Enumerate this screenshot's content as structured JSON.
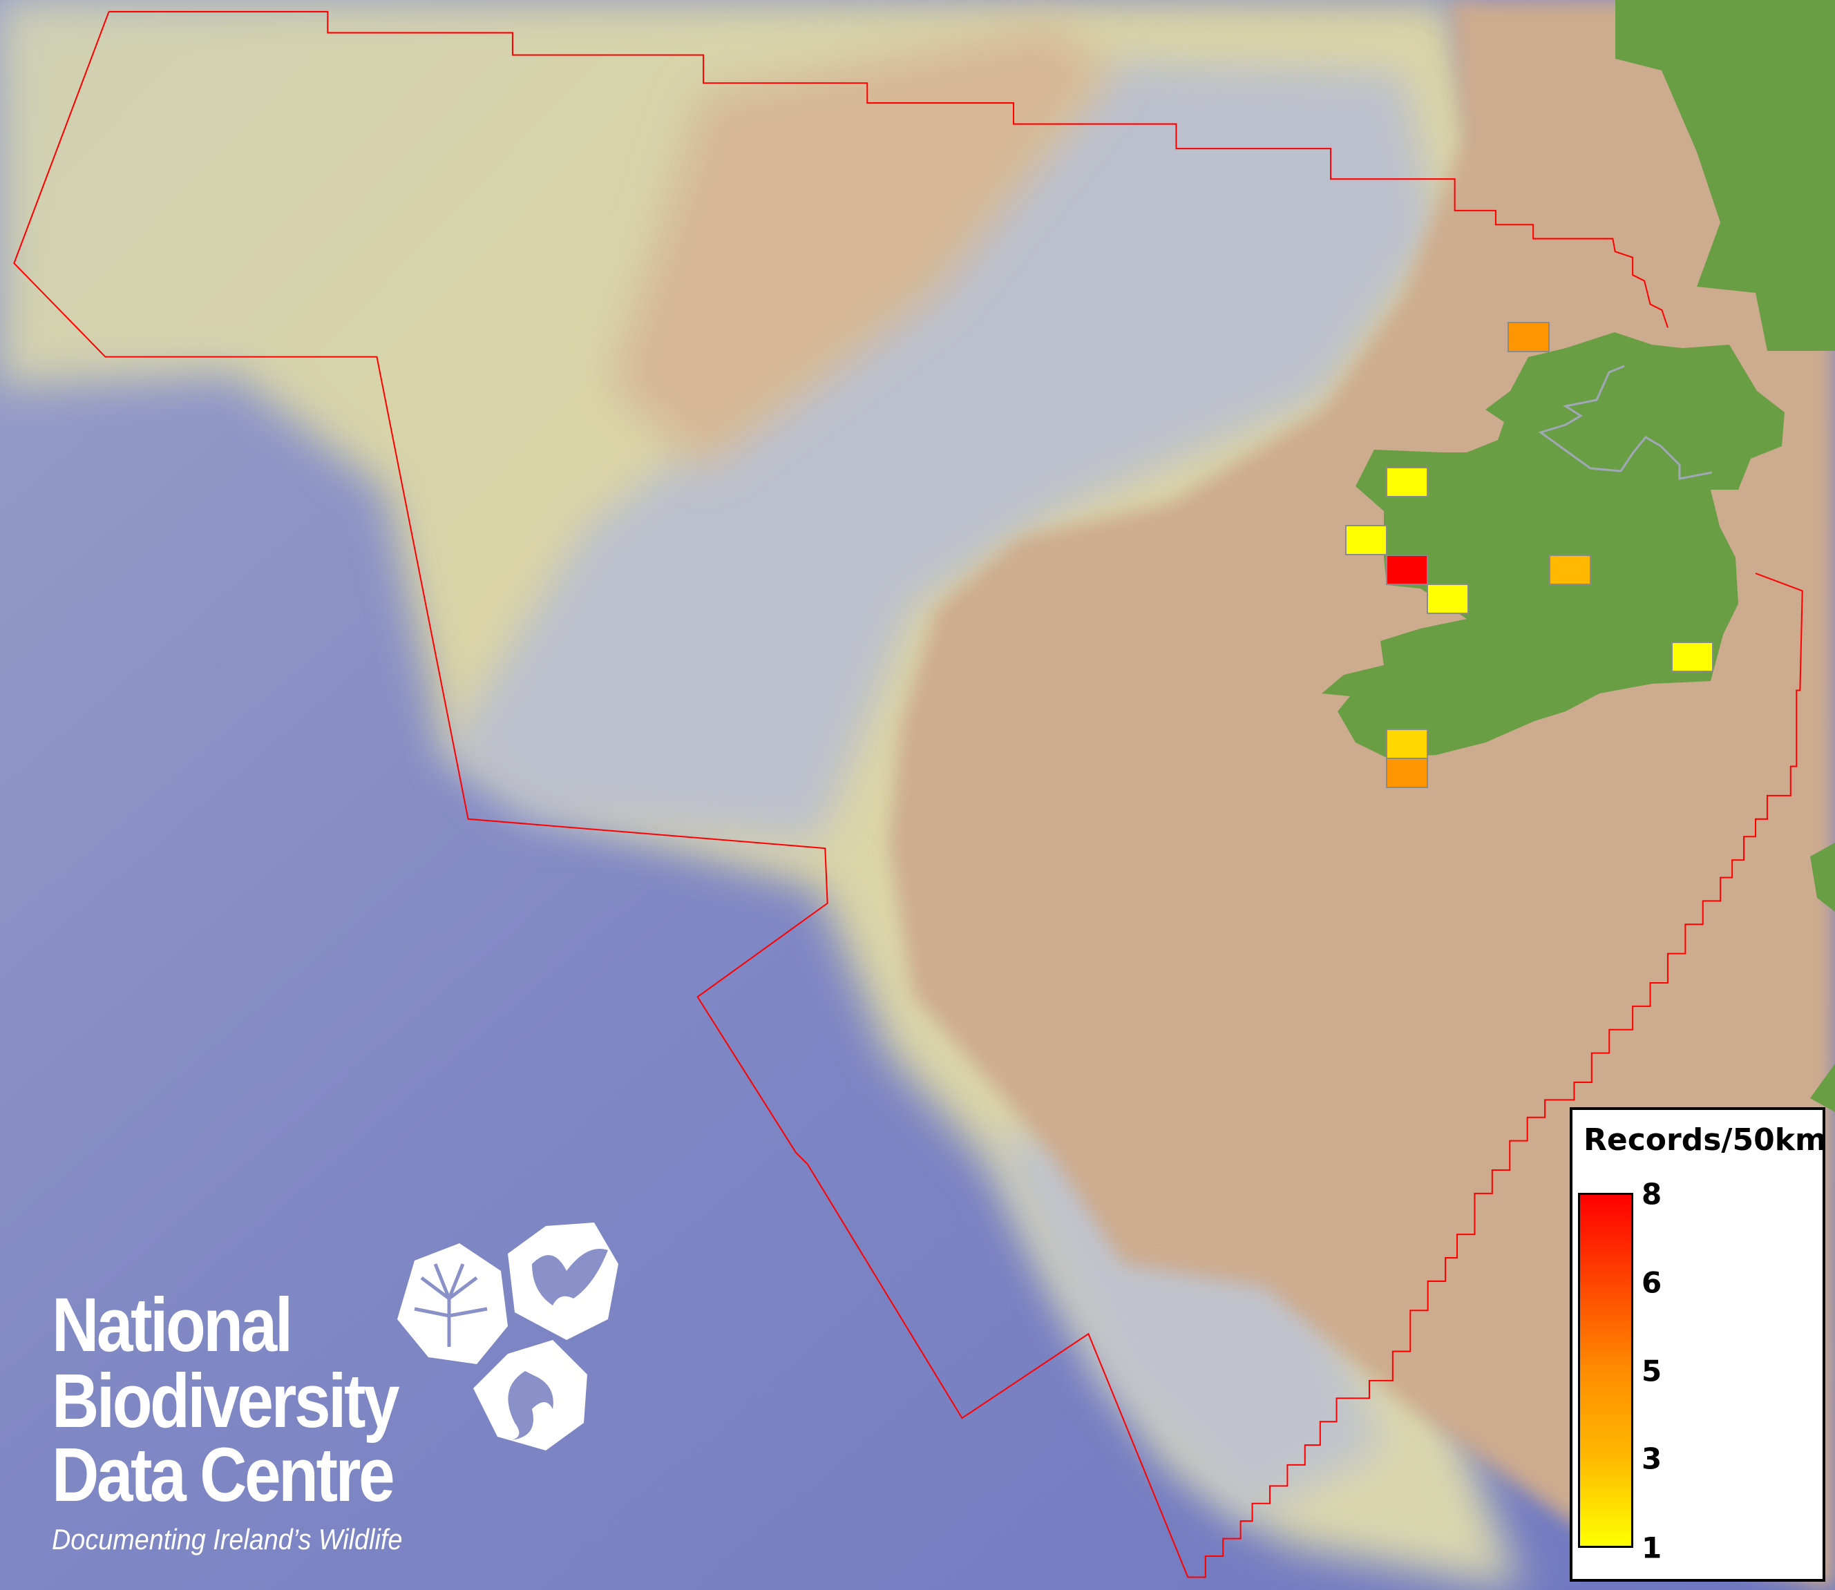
{
  "legend": {
    "title": "Records/50km",
    "ticks": [
      "8",
      "6",
      "5",
      "3",
      "1"
    ],
    "color_low": "#ffff00",
    "color_high": "#ff0000"
  },
  "logo": {
    "line1": "National",
    "line2": "Biodiversity",
    "line3": "Data Centre",
    "tagline": "Documenting Ireland’s Wildlife",
    "icons": [
      "tree-icon",
      "butterfly-icon",
      "seahorse-icon"
    ]
  },
  "grid_squares": [
    {
      "value": 5,
      "color": "#ff9500"
    },
    {
      "value": 1,
      "color": "#ffff00"
    },
    {
      "value": 1,
      "color": "#ffff00"
    },
    {
      "value": 8,
      "color": "#ff0000"
    },
    {
      "value": 1,
      "color": "#ffff00"
    },
    {
      "value": 3,
      "color": "#ffb900"
    },
    {
      "value": 1,
      "color": "#ffff00"
    },
    {
      "value": 2,
      "color": "#ffd800"
    },
    {
      "value": 5,
      "color": "#ff9500"
    }
  ],
  "colors": {
    "deep_ocean": "#7a82c2",
    "shelf": "#cdab8e",
    "slope_light": "#d8d5a8",
    "land": "#6a9e45",
    "boundary": "#ff0000"
  }
}
